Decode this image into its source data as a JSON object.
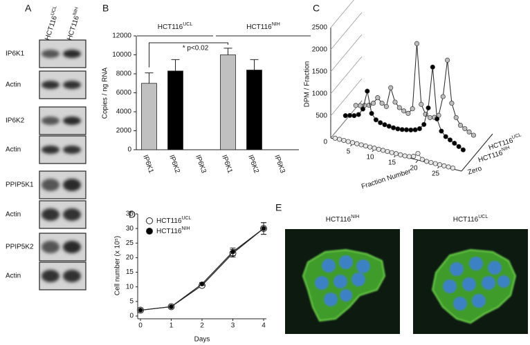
{
  "figure_labels": [
    "A",
    "B",
    "C",
    "D",
    "E"
  ],
  "blots": {
    "columns": [
      {
        "base": "HCT116",
        "sup": "UCL"
      },
      {
        "base": "HCT116",
        "sup": "NIH"
      }
    ],
    "rows": [
      "IP6K1",
      "Actin",
      "IP6K2",
      "Actin",
      "PPIP5K1",
      "Actin",
      "PPIP5K2",
      "Actin"
    ]
  },
  "micrographs": {
    "titles": [
      {
        "base": "HCT116",
        "sup": "NIH"
      },
      {
        "base": "HCT116",
        "sup": "UCL"
      }
    ]
  },
  "chart_data": [
    {
      "type": "bar",
      "ylabel": "Copies / ng RNA",
      "categories": [
        "IP6K1",
        "IP6K2",
        "IP6K3",
        "IP6K1",
        "IP6K2",
        "IP6K3"
      ],
      "values": [
        7000,
        8300,
        0,
        10000,
        8400,
        0
      ],
      "errors": [
        1100,
        1200,
        0,
        700,
        1100,
        0
      ],
      "colors": [
        "#c0c0c0",
        "#000000",
        "#000000",
        "#c0c0c0",
        "#000000",
        "#000000"
      ],
      "groups": [
        {
          "base": "HCT116",
          "sup": "UCL"
        },
        {
          "base": "HCT116",
          "sup": "NIH"
        }
      ],
      "annotation": "* p<0.02",
      "ylim": [
        0,
        12000
      ],
      "yticks": [
        0,
        2000,
        4000,
        6000,
        8000,
        10000,
        12000
      ]
    },
    {
      "type": "line3d",
      "ylabel": "DPM / Fraction",
      "xlabel": "Fraction Number",
      "x": [
        1,
        2,
        3,
        4,
        5,
        6,
        7,
        8,
        9,
        10,
        11,
        12,
        13,
        14,
        15,
        16,
        17,
        18,
        19,
        20,
        21,
        22,
        23,
        24,
        25,
        26,
        27,
        28
      ],
      "xlim": [
        0,
        30
      ],
      "xticks": [
        5,
        10,
        15,
        20,
        25
      ],
      "ylim": [
        0,
        2500
      ],
      "yticks": [
        0,
        500,
        1000,
        1500,
        2000,
        2500
      ],
      "series": [
        {
          "name": "Zero",
          "color": "#e6e6e6",
          "values": [
            20,
            20,
            20,
            20,
            20,
            20,
            20,
            20,
            20,
            20,
            20,
            20,
            20,
            20,
            20,
            20,
            20,
            30,
            60,
            150,
            40,
            20,
            20,
            20,
            20,
            20,
            20,
            20
          ]
        },
        {
          "name": {
            "base": "HCT116",
            "sup": "NIH"
          },
          "color": "#000000",
          "values": [
            250,
            280,
            300,
            350,
            500,
            930,
            450,
            330,
            290,
            270,
            260,
            250,
            250,
            260,
            280,
            300,
            330,
            380,
            500,
            900,
            1850,
            700,
            450,
            350,
            300,
            250,
            200,
            150
          ]
        },
        {
          "name": {
            "base": "HCT116",
            "sup": "UCL"
          },
          "color": "#bdbdbd",
          "values": [
            200,
            220,
            250,
            280,
            350,
            500,
            400,
            350,
            800,
            500,
            400,
            350,
            320,
            450,
            1950,
            600,
            400,
            350,
            380,
            450,
            900,
            1750,
            800,
            500,
            350,
            300,
            250,
            200
          ]
        }
      ]
    },
    {
      "type": "line",
      "ylabel": "Cell number (x 10⁵)",
      "xlabel": "Days",
      "x": [
        0,
        1,
        2,
        3,
        4
      ],
      "xlim": [
        0,
        4
      ],
      "xticks": [
        0,
        1,
        2,
        3,
        4
      ],
      "ylim": [
        0,
        35
      ],
      "yticks": [
        0,
        5,
        10,
        15,
        20,
        25,
        30,
        35
      ],
      "series": [
        {
          "name": {
            "base": "HCT116",
            "sup": "UCL"
          },
          "color": "#ffffff",
          "values": [
            2,
            3.2,
            10.5,
            21.5,
            30
          ],
          "errors": [
            0,
            0,
            0.5,
            1.3,
            2
          ]
        },
        {
          "name": {
            "base": "HCT116",
            "sup": "NIH"
          },
          "color": "#000000",
          "values": [
            2,
            3.2,
            11,
            22,
            30
          ],
          "errors": [
            0,
            0,
            0.5,
            1.3,
            2
          ]
        }
      ]
    }
  ]
}
